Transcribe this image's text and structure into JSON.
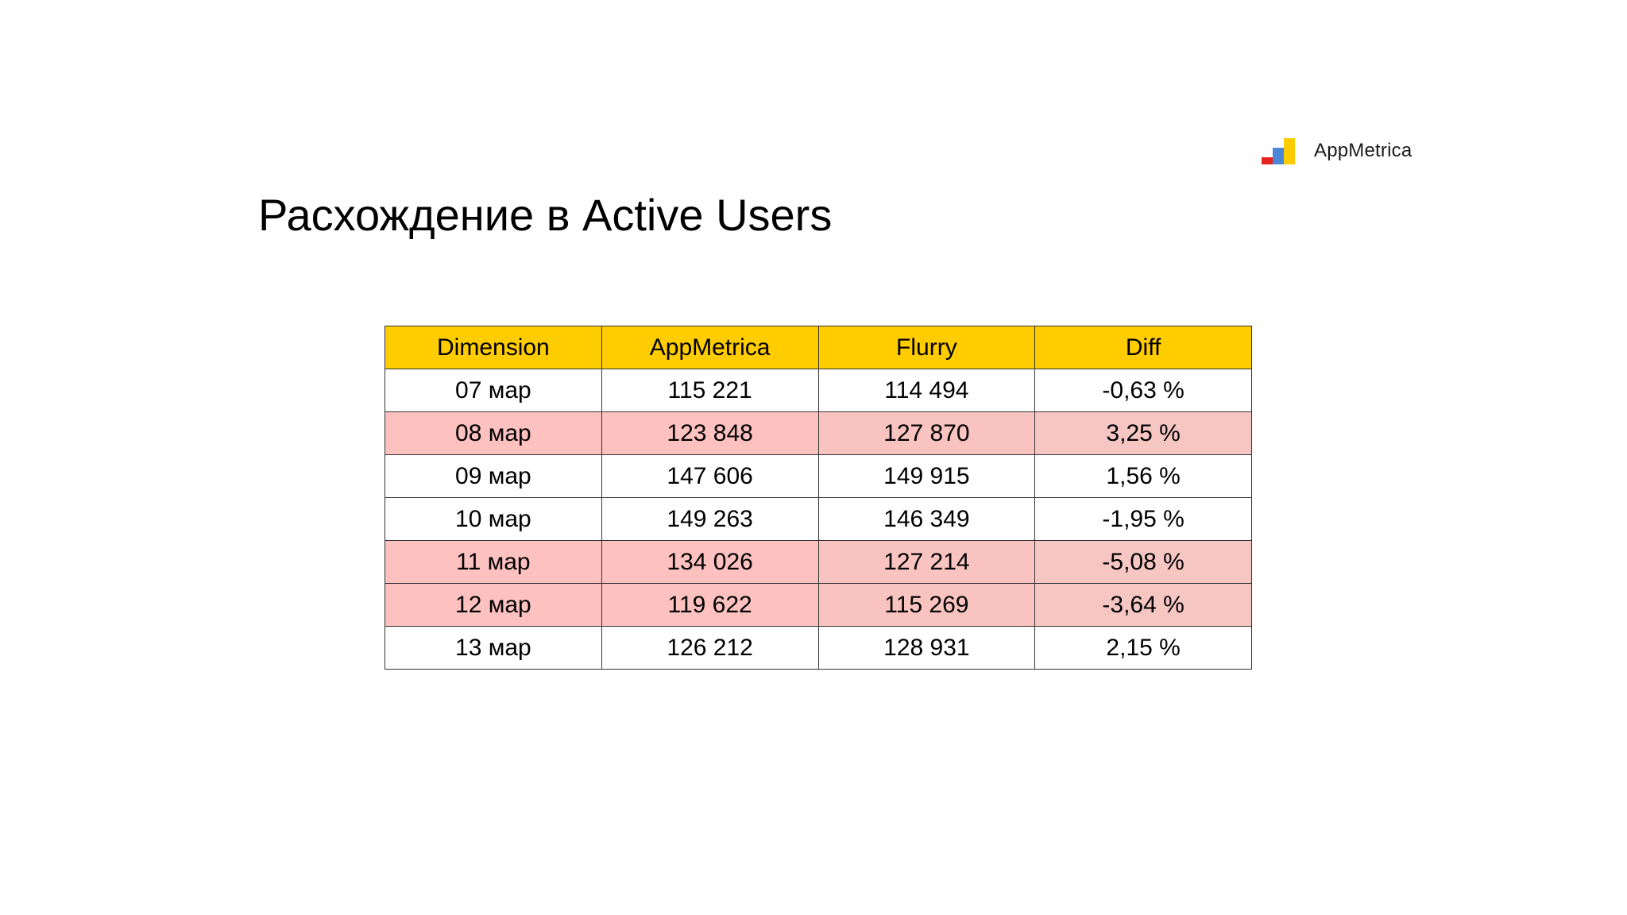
{
  "logo": {
    "text": "AppMetrica",
    "colors": {
      "red": "#e52521",
      "blue": "#4b87d6",
      "yellow": "#fccc00"
    }
  },
  "slide": {
    "title": "Расхождение в Active Users"
  },
  "table": {
    "header_color": "#ffcc00",
    "highlight_color": "#fdc1bf",
    "headers": [
      "Dimension",
      "AppMetrica",
      "Flurry",
      "Diff"
    ],
    "rows": [
      {
        "dimension": "07 мар",
        "appmetrica": "115 221",
        "flurry": "114 494",
        "diff": "-0,63 %",
        "highlighted": false
      },
      {
        "dimension": "08 мар",
        "appmetrica": "123 848",
        "flurry": "127 870",
        "diff": "3,25 %",
        "highlighted": true
      },
      {
        "dimension": "09 мар",
        "appmetrica": "147 606",
        "flurry": "149 915",
        "diff": "1,56 %",
        "highlighted": false
      },
      {
        "dimension": "10 мар",
        "appmetrica": "149 263",
        "flurry": "146 349",
        "diff": "-1,95 %",
        "highlighted": false
      },
      {
        "dimension": "11 мар",
        "appmetrica": "134 026",
        "flurry": "127 214",
        "diff": "-5,08 %",
        "highlighted": true
      },
      {
        "dimension": "12 мар",
        "appmetrica": "119 622",
        "flurry": "115 269",
        "diff": "-3,64 %",
        "highlighted": true
      },
      {
        "dimension": "13 мар",
        "appmetrica": "126 212",
        "flurry": "128 931",
        "diff": "2,15 %",
        "highlighted": false
      }
    ]
  }
}
